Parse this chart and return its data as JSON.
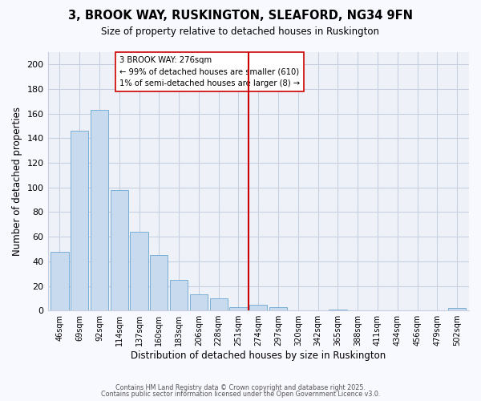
{
  "title": "3, BROOK WAY, RUSKINGTON, SLEAFORD, NG34 9FN",
  "subtitle": "Size of property relative to detached houses in Ruskington",
  "xlabel": "Distribution of detached houses by size in Ruskington",
  "ylabel": "Number of detached properties",
  "bar_color": "#c8daed",
  "bar_edge_color": "#7aafd4",
  "categories": [
    "46sqm",
    "69sqm",
    "92sqm",
    "114sqm",
    "137sqm",
    "160sqm",
    "183sqm",
    "206sqm",
    "228sqm",
    "251sqm",
    "274sqm",
    "297sqm",
    "320sqm",
    "342sqm",
    "365sqm",
    "388sqm",
    "411sqm",
    "434sqm",
    "456sqm",
    "479sqm",
    "502sqm"
  ],
  "values": [
    48,
    146,
    163,
    98,
    64,
    45,
    25,
    13,
    10,
    3,
    5,
    3,
    0,
    0,
    1,
    0,
    0,
    0,
    0,
    0,
    2
  ],
  "ylim": [
    0,
    210
  ],
  "yticks": [
    0,
    20,
    40,
    60,
    80,
    100,
    120,
    140,
    160,
    180,
    200
  ],
  "vline_color": "#cc0000",
  "annotation_title": "3 BROOK WAY: 276sqm",
  "annotation_line1": "← 99% of detached houses are smaller (610)",
  "annotation_line2": "1% of semi-detached houses are larger (8) →",
  "footer1": "Contains HM Land Registry data © Crown copyright and database right 2025.",
  "footer2": "Contains public sector information licensed under the Open Government Licence v3.0.",
  "plot_bg_color": "#eef2f8",
  "fig_bg_color": "#f8f8ff",
  "grid_color": "#c8cfe0"
}
